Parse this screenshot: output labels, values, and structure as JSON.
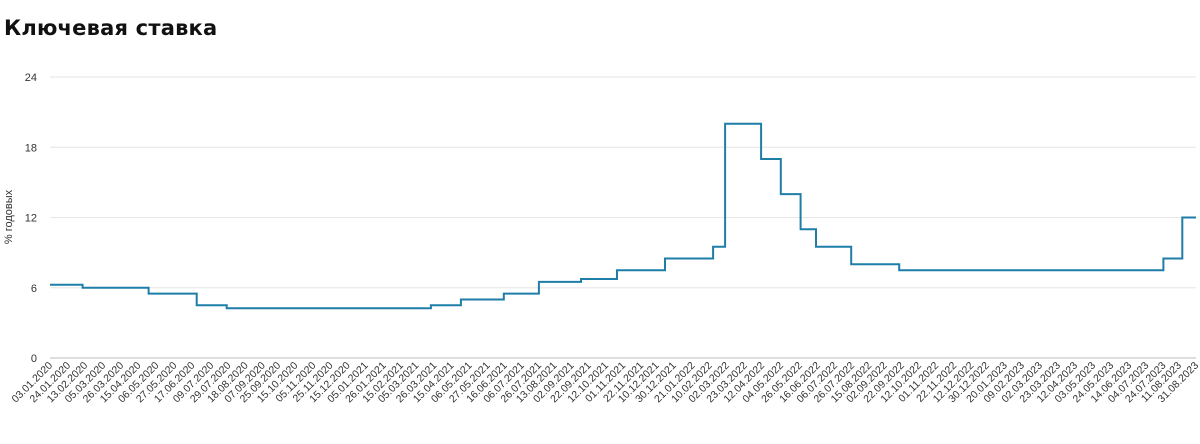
{
  "header": {
    "title": "Ключевая ставка"
  },
  "chart_data": {
    "type": "line",
    "title": "Ключевая ставка",
    "xlabel": "",
    "ylabel": "% годовых",
    "ylim": [
      0,
      24
    ],
    "yticks": [
      0,
      6,
      12,
      18,
      24
    ],
    "grid": "horizontal",
    "legend": "none",
    "line_color": "#1f7ea8",
    "x_tick_labels": [
      "03.01.2020",
      "24.01.2020",
      "13.02.2020",
      "05.03.2020",
      "26.03.2020",
      "15.04.2020",
      "06.05.2020",
      "27.05.2020",
      "17.06.2020",
      "09.07.2020",
      "29.07.2020",
      "18.08.2020",
      "07.09.2020",
      "25.09.2020",
      "15.10.2020",
      "05.11.2020",
      "25.11.2020",
      "15.12.2020",
      "05.01.2021",
      "26.01.2021",
      "15.02.2021",
      "05.03.2021",
      "26.03.2021",
      "15.04.2021",
      "06.05.2021",
      "27.05.2021",
      "16.06.2021",
      "06.07.2021",
      "26.07.2021",
      "13.08.2021",
      "02.09.2021",
      "22.09.2021",
      "12.10.2021",
      "01.11.2021",
      "22.11.2021",
      "10.12.2021",
      "30.12.2021",
      "21.01.2022",
      "10.02.2022",
      "02.03.2022",
      "23.03.2022",
      "12.04.2022",
      "04.05.2022",
      "26.05.2022",
      "16.06.2022",
      "06.07.2022",
      "26.07.2022",
      "15.08.2022",
      "02.09.2022",
      "22.09.2022",
      "12.10.2022",
      "01.11.2022",
      "22.11.2022",
      "12.12.2022",
      "30.12.2022",
      "20.01.2023",
      "09.02.2023",
      "02.03.2023",
      "23.03.2023",
      "12.04.2023",
      "03.05.2023",
      "24.05.2023",
      "14.06.2023",
      "04.07.2023",
      "24.07.2023",
      "11.08.2023",
      "31.08.2023"
    ],
    "series": [
      {
        "values": [
          {
            "x": "03.01.2020",
            "y": 6.25
          },
          {
            "x": "10.02.2020",
            "y": 6.0
          },
          {
            "x": "27.04.2020",
            "y": 5.5
          },
          {
            "x": "22.06.2020",
            "y": 4.5
          },
          {
            "x": "27.07.2020",
            "y": 4.25
          },
          {
            "x": "22.03.2021",
            "y": 4.5
          },
          {
            "x": "26.04.2021",
            "y": 5.0
          },
          {
            "x": "15.06.2021",
            "y": 5.5
          },
          {
            "x": "26.07.2021",
            "y": 6.5
          },
          {
            "x": "13.09.2021",
            "y": 6.75
          },
          {
            "x": "25.10.2021",
            "y": 7.5
          },
          {
            "x": "20.12.2021",
            "y": 8.5
          },
          {
            "x": "14.02.2022",
            "y": 9.5
          },
          {
            "x": "28.02.2022",
            "y": 20.0
          },
          {
            "x": "11.04.2022",
            "y": 17.0
          },
          {
            "x": "04.05.2022",
            "y": 14.0
          },
          {
            "x": "27.05.2022",
            "y": 11.0
          },
          {
            "x": "14.06.2022",
            "y": 9.5
          },
          {
            "x": "25.07.2022",
            "y": 8.0
          },
          {
            "x": "19.09.2022",
            "y": 7.5
          },
          {
            "x": "24.07.2023",
            "y": 8.5
          },
          {
            "x": "15.08.2023",
            "y": 12.0
          },
          {
            "x": "31.08.2023",
            "y": 12.0
          }
        ]
      }
    ]
  }
}
